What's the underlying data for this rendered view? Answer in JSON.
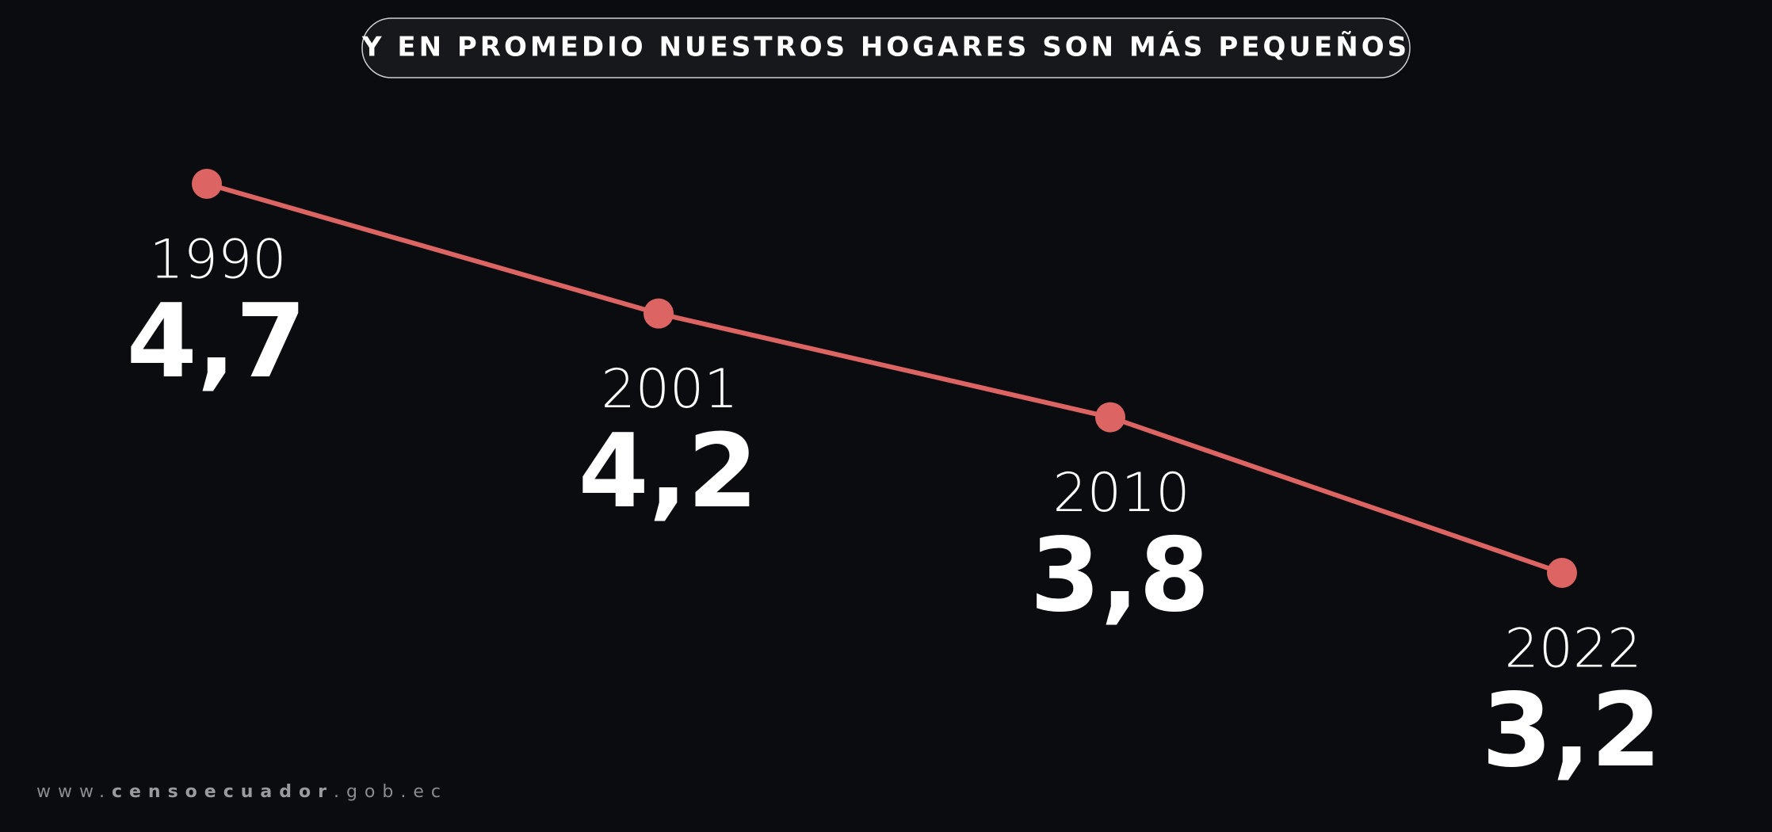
{
  "chart_data": {
    "type": "line",
    "title": "Y EN PROMEDIO NUESTROS HOGARES SON MÁS PEQUEÑOS",
    "categories": [
      "1990",
      "2001",
      "2010",
      "2022"
    ],
    "values": [
      4.7,
      4.2,
      3.8,
      3.2
    ],
    "value_labels": [
      "4,7",
      "4,2",
      "3,8",
      "3,2"
    ],
    "color": "#dc6463"
  },
  "footer": [
    "www.",
    "censoecuador",
    ".gob.ec"
  ]
}
